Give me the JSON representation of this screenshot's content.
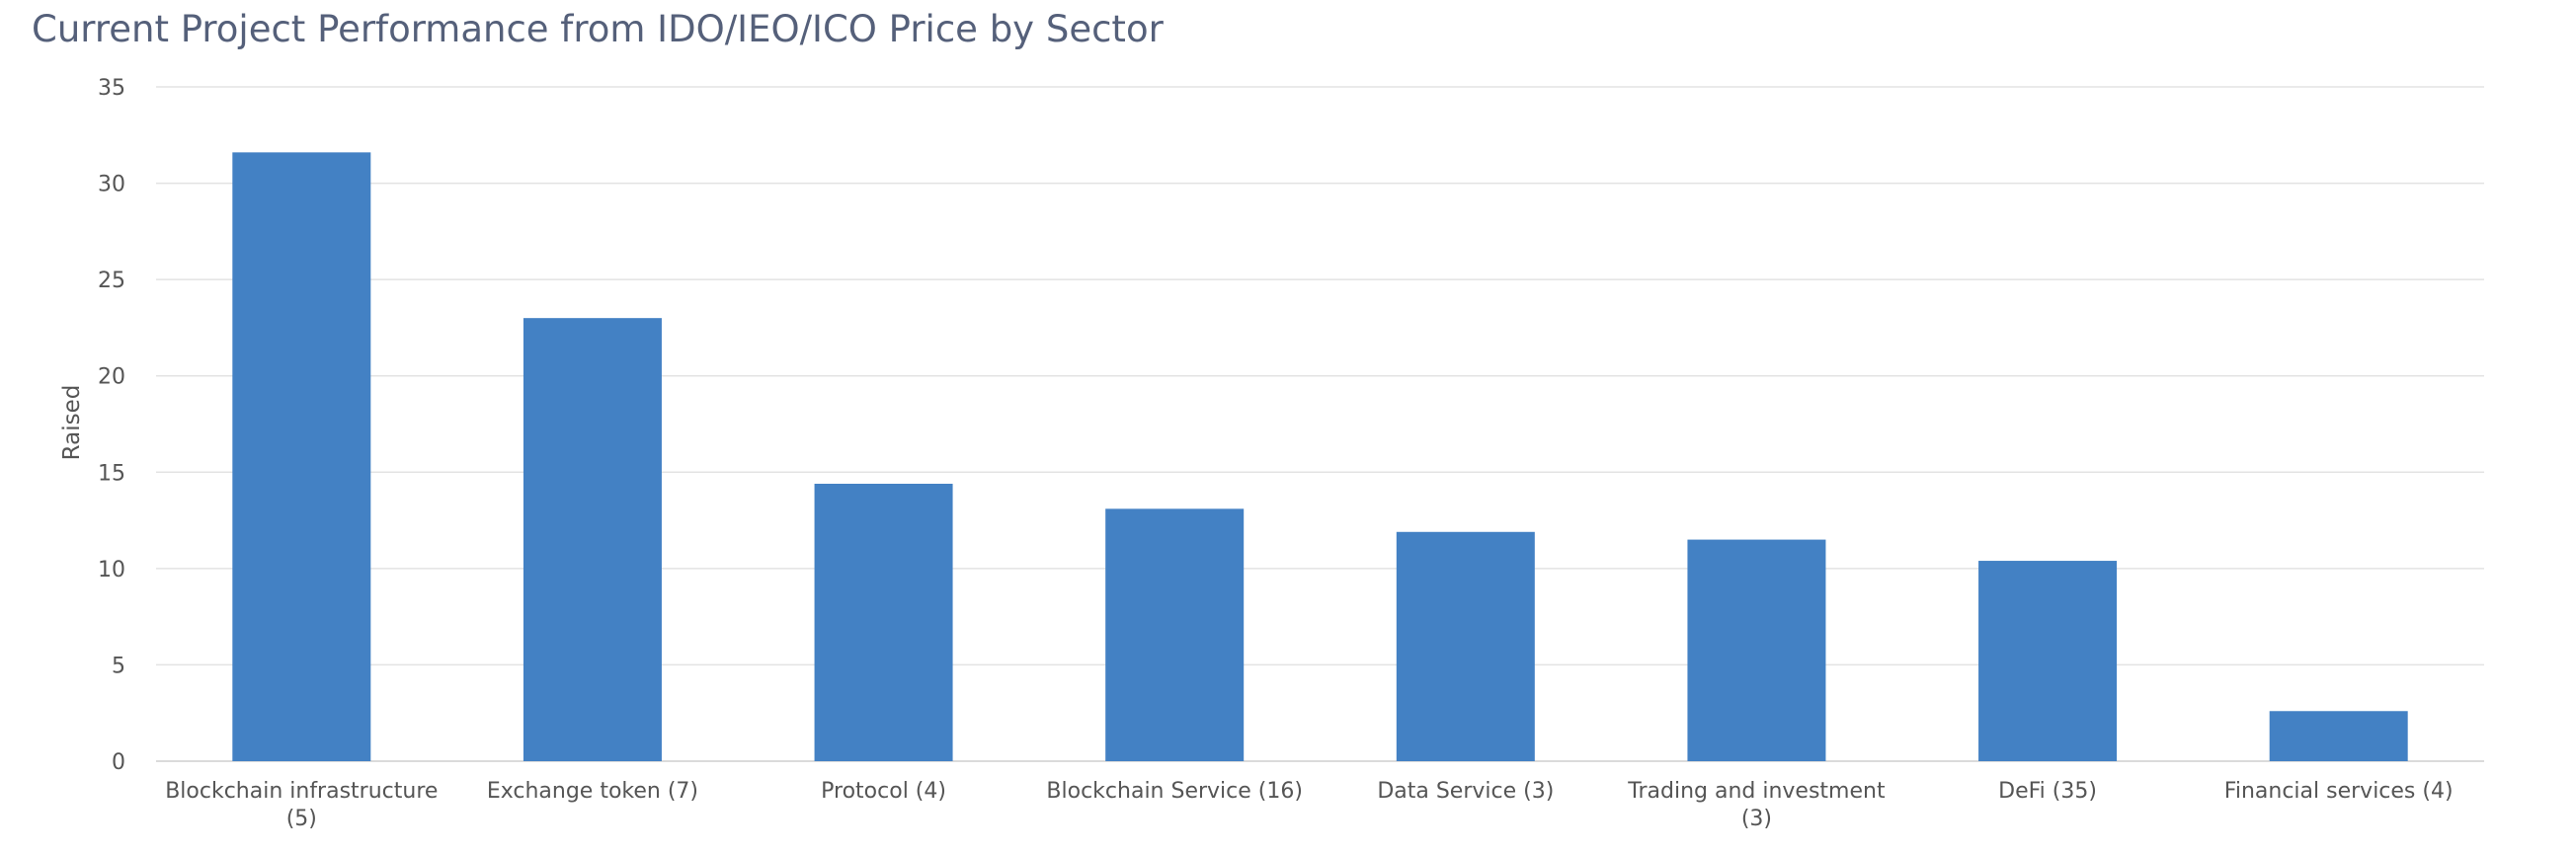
{
  "chart_data": {
    "type": "bar",
    "title": "Current Project Performance from IDO/IEO/ICO Price by Sector",
    "xlabel": "",
    "ylabel": "Raised",
    "ylim": [
      0,
      35
    ],
    "yticks": [
      0,
      5,
      10,
      15,
      20,
      25,
      30,
      35
    ],
    "categories": [
      [
        "Blockchain infrastructure",
        "(5)"
      ],
      [
        "Exchange token (7)"
      ],
      [
        "Protocol (4)"
      ],
      [
        "Blockchain Service (16)"
      ],
      [
        "Data Service (3)"
      ],
      [
        "Trading and investment",
        "(3)"
      ],
      [
        "DeFi (35)"
      ],
      [
        "Financial services (4)"
      ]
    ],
    "values": [
      31.6,
      23.0,
      14.4,
      13.1,
      11.9,
      11.5,
      10.4,
      2.6
    ],
    "bar_color": "#4381c4",
    "grid": true
  }
}
